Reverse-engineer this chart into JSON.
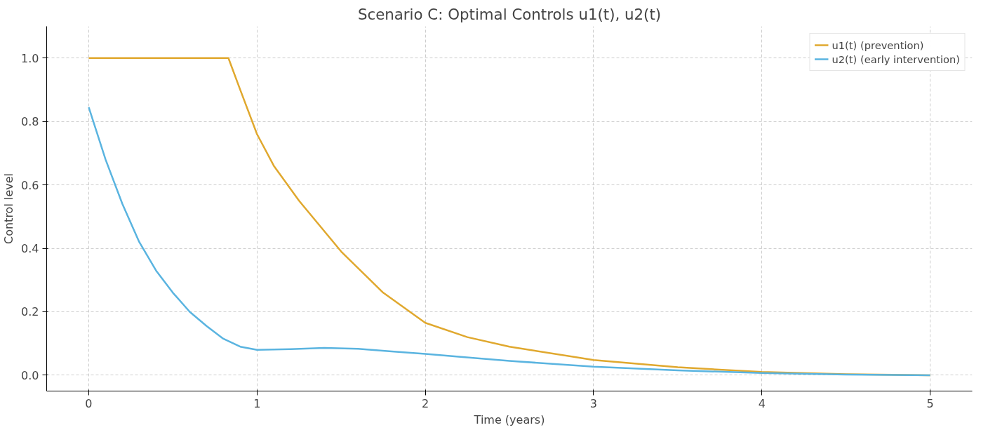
{
  "chart_data": {
    "type": "line",
    "title": "Scenario C: Optimal Controls u1(t), u2(t)",
    "xlabel": "Time (years)",
    "ylabel": "Control level",
    "xlim": [
      -0.25,
      5.25
    ],
    "ylim": [
      -0.05,
      1.1
    ],
    "xticks": [
      0,
      1,
      2,
      3,
      4,
      5
    ],
    "yticks": [
      {
        "value": 0,
        "label": "0.0"
      },
      0.2,
      0.4,
      0.6,
      0.8,
      {
        "value": 1,
        "label": "1.0"
      }
    ],
    "grid": true,
    "legend": "top right",
    "line_style": "solid",
    "marker": "none",
    "series": [
      {
        "name": "u1(t) (prevention)",
        "color": "#e0a82e",
        "x": [
          0,
          0.83,
          0.9,
          1.0,
          1.1,
          1.25,
          1.5,
          1.75,
          2.0,
          2.25,
          2.5,
          3.0,
          3.5,
          4.0,
          4.5,
          5.0
        ],
        "values": [
          1.0,
          1.0,
          0.9,
          0.76,
          0.66,
          0.55,
          0.39,
          0.26,
          0.165,
          0.12,
          0.09,
          0.048,
          0.025,
          0.01,
          0.003,
          0
        ]
      },
      {
        "name": "u2(t) (early intervention)",
        "color": "#5ab4e0",
        "x": [
          0,
          0.1,
          0.2,
          0.3,
          0.4,
          0.5,
          0.6,
          0.7,
          0.8,
          0.9,
          1.0,
          1.2,
          1.4,
          1.6,
          1.8,
          2.0,
          2.5,
          3.0,
          3.5,
          4.0,
          4.5,
          5.0
        ],
        "values": [
          0.845,
          0.68,
          0.54,
          0.42,
          0.33,
          0.26,
          0.2,
          0.155,
          0.115,
          0.09,
          0.08,
          0.082,
          0.086,
          0.083,
          0.075,
          0.067,
          0.045,
          0.027,
          0.015,
          0.007,
          0.002,
          0
        ]
      }
    ]
  }
}
